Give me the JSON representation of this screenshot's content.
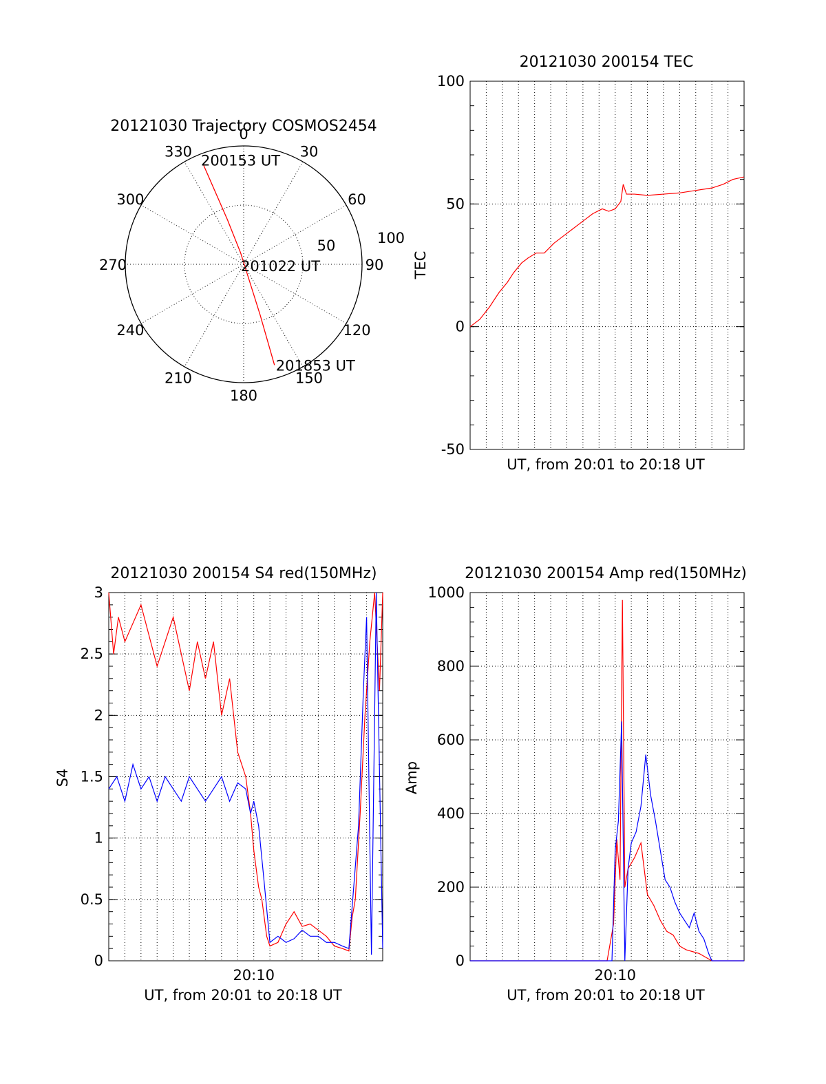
{
  "chart_data": [
    {
      "type": "polar",
      "title": "20121030 Trajectory COSMOS2454",
      "angle_labels": [
        "0",
        "30",
        "60",
        "90",
        "120",
        "150",
        "180",
        "210",
        "240",
        "270",
        "300",
        "330"
      ],
      "radius_labels": [
        "50",
        "100"
      ],
      "rlim": [
        0,
        100
      ],
      "grid": true,
      "track_color": "#ff0000",
      "annotations": [
        {
          "text": "200153 UT",
          "azimuth": 338,
          "radius": 90
        },
        {
          "text": "201022 UT",
          "azimuth": 0,
          "radius": 0
        },
        {
          "text": "201853 UT",
          "azimuth": 163,
          "radius": 89
        }
      ],
      "trajectory": [
        {
          "azimuth": 338,
          "radius": 90
        },
        {
          "azimuth": 340,
          "radius": 40
        },
        {
          "azimuth": 345,
          "radius": 10
        },
        {
          "azimuth": 160,
          "radius": 10
        },
        {
          "azimuth": 162,
          "radius": 45
        },
        {
          "azimuth": 163,
          "radius": 89
        }
      ]
    },
    {
      "type": "line",
      "title": "20121030 200154 TEC",
      "xlabel": "UT, from 20:01 to 20:18 UT",
      "ylabel": "TEC",
      "xlim": [
        0,
        17
      ],
      "ylim": [
        -50,
        100
      ],
      "yticks": [
        "-50",
        "0",
        "50",
        "100"
      ],
      "grid": true,
      "series": [
        {
          "color": "#ff0000",
          "x": [
            0,
            0.6,
            1.2,
            1.8,
            2.3,
            2.7,
            3.2,
            3.6,
            4.1,
            4.6,
            5.2,
            5.8,
            6.4,
            7.0,
            7.6,
            8.2,
            8.6,
            9.0,
            9.35,
            9.5,
            9.7,
            10.2,
            11.0,
            12.0,
            13.0,
            14.0,
            15.0,
            15.7,
            16.3,
            17.0
          ],
          "y": [
            0,
            3,
            8,
            14,
            18,
            22,
            26,
            28,
            30,
            30,
            34,
            37,
            40,
            43,
            46,
            48,
            47,
            48,
            51,
            58,
            54,
            54,
            53.5,
            54,
            54.5,
            55.5,
            56.5,
            58,
            60,
            61
          ]
        }
      ]
    },
    {
      "type": "line",
      "title": "20121030 200154 S4 red(150MHz)",
      "xlabel": "UT, from 20:01 to 20:18 UT",
      "ylabel": "S4",
      "xlim": [
        0,
        17
      ],
      "ylim": [
        0,
        3
      ],
      "xticks": [
        "20:10"
      ],
      "yticks": [
        "0",
        "0.5",
        "1",
        "1.5",
        "2",
        "2.5",
        "3"
      ],
      "grid": true,
      "series": [
        {
          "color": "#ff0000",
          "x": [
            0,
            0.3,
            0.6,
            1.0,
            2.0,
            3.0,
            4.0,
            5.0,
            5.5,
            6.0,
            6.5,
            7.0,
            7.5,
            8.0,
            8.5,
            8.8,
            9.0,
            9.3,
            9.5,
            9.8,
            10.0,
            10.5,
            11.0,
            11.5,
            12.0,
            12.5,
            13.0,
            13.5,
            14.0,
            14.5,
            14.9,
            15.1,
            15.3,
            15.6,
            15.9,
            16.2,
            16.5,
            16.8,
            17.0
          ],
          "y": [
            3.0,
            2.5,
            2.8,
            2.6,
            2.9,
            2.4,
            2.8,
            2.2,
            2.6,
            2.3,
            2.6,
            2.0,
            2.3,
            1.7,
            1.5,
            1.2,
            0.9,
            0.6,
            0.5,
            0.2,
            0.12,
            0.15,
            0.3,
            0.4,
            0.28,
            0.3,
            0.25,
            0.2,
            0.12,
            0.1,
            0.08,
            0.35,
            0.5,
            1.2,
            2.0,
            2.6,
            3.0,
            2.2,
            3.0
          ]
        },
        {
          "color": "#0000ff",
          "x": [
            0,
            0.5,
            1.0,
            1.5,
            2.0,
            2.5,
            3.0,
            3.5,
            4.0,
            4.5,
            5.0,
            5.5,
            6.0,
            6.5,
            7.0,
            7.5,
            8.0,
            8.5,
            8.8,
            9.0,
            9.3,
            9.6,
            10.0,
            10.5,
            11.0,
            11.5,
            12.0,
            12.5,
            13.0,
            13.5,
            14.0,
            14.5,
            14.9,
            15.2,
            15.5,
            15.8,
            16.0,
            16.3,
            16.6,
            17.0
          ],
          "y": [
            1.4,
            1.5,
            1.3,
            1.6,
            1.4,
            1.5,
            1.3,
            1.5,
            1.4,
            1.3,
            1.5,
            1.4,
            1.3,
            1.4,
            1.5,
            1.3,
            1.45,
            1.4,
            1.2,
            1.3,
            1.1,
            0.7,
            0.15,
            0.2,
            0.15,
            0.18,
            0.25,
            0.2,
            0.2,
            0.15,
            0.15,
            0.12,
            0.1,
            0.6,
            1.1,
            2.2,
            2.8,
            0.05,
            3.0,
            0.1
          ]
        }
      ]
    },
    {
      "type": "line",
      "title": "20121030 200154 Amp red(150MHz)",
      "xlabel": "UT, from 20:01 to 20:18 UT",
      "ylabel": "Amp",
      "xlim": [
        0,
        17
      ],
      "ylim": [
        0,
        1000
      ],
      "xticks": [
        "20:10"
      ],
      "yticks": [
        "0",
        "200",
        "400",
        "600",
        "800",
        "1000"
      ],
      "grid": true,
      "series": [
        {
          "color": "#ff0000",
          "x": [
            0,
            8.5,
            8.9,
            9.1,
            9.3,
            9.45,
            9.6,
            9.8,
            10.2,
            10.6,
            11.0,
            11.4,
            11.8,
            12.2,
            12.6,
            13.0,
            13.4,
            13.8,
            14.2,
            14.6,
            15.0,
            17.0
          ],
          "y": [
            0,
            0,
            100,
            330,
            220,
            980,
            200,
            250,
            280,
            320,
            180,
            150,
            110,
            80,
            70,
            40,
            30,
            25,
            20,
            10,
            0,
            0
          ]
        },
        {
          "color": "#0000ff",
          "x": [
            0,
            8.6,
            8.8,
            9.0,
            9.2,
            9.4,
            9.6,
            9.8,
            10.0,
            10.3,
            10.6,
            10.9,
            11.2,
            11.5,
            11.8,
            12.1,
            12.4,
            12.7,
            13.0,
            13.3,
            13.6,
            13.9,
            14.2,
            14.5,
            14.8,
            15.0,
            17.0
          ],
          "y": [
            0,
            0,
            0,
            300,
            380,
            650,
            0,
            250,
            320,
            350,
            420,
            560,
            450,
            380,
            300,
            220,
            200,
            160,
            130,
            110,
            90,
            130,
            80,
            60,
            20,
            0,
            0
          ]
        }
      ]
    }
  ]
}
